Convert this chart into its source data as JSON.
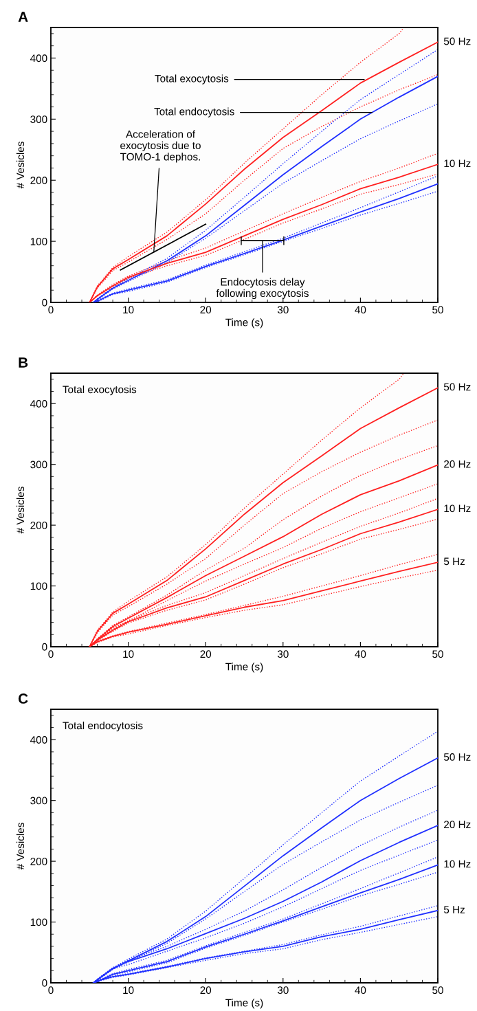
{
  "chart_data": [
    {
      "type": "line",
      "title": "A",
      "xlabel": "Time (s)",
      "ylabel": "# Vesicles",
      "xlim": [
        0,
        50
      ],
      "ylim": [
        0,
        450
      ],
      "xticks": [
        0,
        10,
        20,
        30,
        40,
        50
      ],
      "yticks": [
        0,
        100,
        200,
        300,
        400
      ],
      "grid": false,
      "legend": false,
      "series": [
        {
          "name": "50 Hz",
          "color": "#ff2020",
          "line_style": "solid",
          "x": [
            5,
            6,
            8,
            10,
            15,
            20,
            25,
            30,
            35,
            40,
            45,
            50
          ],
          "values": [
            0,
            25,
            55,
            70,
            109,
            161,
            218,
            270,
            314,
            359,
            393,
            426
          ]
        },
        {
          "color": "#ff2020",
          "line_style": "dotted",
          "x": [
            5,
            6,
            8,
            10,
            15,
            20,
            25,
            30,
            35,
            40,
            45,
            45.6
          ],
          "values": [
            0,
            27,
            57,
            75,
            115,
            168,
            228,
            284,
            340,
            393,
            440,
            450
          ]
        },
        {
          "color": "#ff2020",
          "line_style": "dotted",
          "x": [
            5,
            6,
            8,
            10,
            15,
            20,
            25,
            30,
            35,
            40,
            45,
            50
          ],
          "values": [
            0,
            23,
            52,
            66,
            103,
            145,
            200,
            252,
            288,
            320,
            348,
            373
          ]
        },
        {
          "color": "#2030ff",
          "line_style": "solid",
          "x": [
            5.5,
            6,
            8,
            10,
            15,
            20,
            25,
            30,
            35,
            40,
            45,
            50
          ],
          "values": [
            0,
            5,
            23,
            36,
            68,
            109,
            159,
            209,
            255,
            300,
            336,
            370
          ]
        },
        {
          "color": "#2030ff",
          "line_style": "dotted",
          "x": [
            5.5,
            6,
            8,
            10,
            15,
            20,
            25,
            30,
            35,
            40,
            45,
            50
          ],
          "values": [
            0,
            6,
            24,
            39,
            72,
            118,
            172,
            227,
            280,
            332,
            373,
            414
          ]
        },
        {
          "color": "#2030ff",
          "line_style": "dotted",
          "x": [
            5.5,
            6,
            8,
            10,
            15,
            20,
            25,
            30,
            35,
            40,
            45,
            50
          ],
          "values": [
            0,
            4,
            22,
            34,
            65,
            105,
            150,
            195,
            232,
            268,
            297,
            325
          ]
        },
        {
          "name": "10 Hz",
          "color": "#ff2020",
          "line_style": "solid",
          "x": [
            5,
            6,
            8,
            10,
            15,
            20,
            25,
            30,
            35,
            40,
            45,
            50
          ],
          "values": [
            0,
            11,
            27,
            41,
            64,
            82,
            109,
            136,
            160,
            186,
            205,
            226
          ]
        },
        {
          "color": "#ff2020",
          "line_style": "dotted",
          "x": [
            5,
            6,
            8,
            10,
            15,
            20,
            25,
            30,
            35,
            40,
            45,
            50
          ],
          "values": [
            0,
            12,
            29,
            43,
            68,
            89,
            117,
            145,
            172,
            198,
            220,
            244
          ]
        },
        {
          "color": "#ff2020",
          "line_style": "dotted",
          "x": [
            5,
            6,
            8,
            10,
            15,
            20,
            25,
            30,
            35,
            40,
            45,
            50
          ],
          "values": [
            0,
            10,
            25,
            39,
            60,
            77,
            103,
            130,
            153,
            177,
            193,
            210
          ]
        },
        {
          "color": "#2030ff",
          "line_style": "solid",
          "x": [
            5.5,
            6,
            8,
            10,
            15,
            20,
            25,
            30,
            35,
            40,
            45,
            50
          ],
          "values": [
            0,
            2,
            14,
            20,
            35,
            59,
            80,
            102,
            125,
            148,
            170,
            194
          ]
        },
        {
          "color": "#2030ff",
          "line_style": "dotted",
          "x": [
            5.5,
            6,
            8,
            10,
            15,
            20,
            25,
            30,
            35,
            40,
            45,
            50
          ],
          "values": [
            0,
            3,
            15,
            22,
            37,
            61,
            83,
            105,
            130,
            155,
            181,
            207
          ]
        },
        {
          "color": "#2030ff",
          "line_style": "dotted",
          "x": [
            5.5,
            6,
            8,
            10,
            15,
            20,
            25,
            30,
            35,
            40,
            45,
            50
          ],
          "values": [
            0,
            1,
            13,
            18,
            33,
            57,
            78,
            100,
            121,
            143,
            162,
            182
          ]
        },
        {
          "color": "#000000",
          "line_style": "solid",
          "x": [
            9,
            20
          ],
          "values": [
            53,
            128
          ]
        },
        {
          "color": "#000000",
          "line_style": "solid",
          "errors": [
            7,
            7
          ],
          "x": [
            24.6,
            30.1
          ],
          "values": [
            101,
            101
          ]
        }
      ],
      "annotations": [
        {
          "text": "Total exocytosis",
          "x": 40.5,
          "y": 365
        },
        {
          "text": "Total endocytosis",
          "x": 41.5,
          "y": 311
        },
        {
          "text": "Acceleration of\nexocytosis due to\nTOMO-1 dephos.",
          "x": 13.3,
          "y": 82
        },
        {
          "text": "Endocytosis delay\nfollowing exocytosis",
          "x": 27.35,
          "y": 101
        }
      ]
    },
    {
      "type": "line",
      "title": "B",
      "xlabel": "Time (s)",
      "ylabel": "# Vesicles",
      "xlim": [
        0,
        50
      ],
      "ylim": [
        0,
        450
      ],
      "xticks": [
        0,
        10,
        20,
        30,
        40,
        50
      ],
      "yticks": [
        0,
        100,
        200,
        300,
        400
      ],
      "grid": false,
      "legend": false,
      "series": [
        {
          "name": "50 Hz",
          "color": "#ff2020",
          "line_style": "solid",
          "x": [
            5,
            6,
            8,
            10,
            15,
            20,
            25,
            30,
            35,
            40,
            45,
            50
          ],
          "values": [
            0,
            25,
            55,
            70,
            109,
            161,
            218,
            270,
            314,
            359,
            393,
            426
          ]
        },
        {
          "color": "#ff2020",
          "line_style": "dotted",
          "x": [
            5,
            6,
            8,
            10,
            15,
            20,
            25,
            30,
            35,
            40,
            45,
            45.6
          ],
          "values": [
            0,
            27,
            57,
            75,
            115,
            168,
            228,
            284,
            340,
            393,
            440,
            450
          ]
        },
        {
          "color": "#ff2020",
          "line_style": "dotted",
          "x": [
            5,
            6,
            8,
            10,
            15,
            20,
            25,
            30,
            35,
            40,
            45,
            50
          ],
          "values": [
            0,
            23,
            52,
            66,
            103,
            145,
            200,
            252,
            288,
            320,
            348,
            373
          ]
        },
        {
          "name": "20 Hz",
          "color": "#ff2020",
          "line_style": "solid",
          "x": [
            5,
            6,
            8,
            10,
            15,
            20,
            25,
            30,
            35,
            40,
            45,
            50
          ],
          "values": [
            0,
            12,
            33,
            47,
            81,
            117,
            149,
            181,
            218,
            250,
            273,
            299
          ]
        },
        {
          "color": "#ff2020",
          "line_style": "dotted",
          "x": [
            5,
            6,
            8,
            10,
            15,
            20,
            25,
            30,
            35,
            40,
            45,
            50
          ],
          "values": [
            0,
            13,
            35,
            49,
            85,
            126,
            162,
            209,
            248,
            282,
            308,
            331
          ]
        },
        {
          "color": "#ff2020",
          "line_style": "dotted",
          "x": [
            5,
            6,
            8,
            10,
            15,
            20,
            25,
            30,
            35,
            40,
            45,
            50
          ],
          "values": [
            0,
            11,
            31,
            42,
            76,
            108,
            136,
            163,
            195,
            222,
            245,
            268
          ]
        },
        {
          "name": "10 Hz",
          "color": "#ff2020",
          "line_style": "solid",
          "x": [
            5,
            6,
            8,
            10,
            15,
            20,
            25,
            30,
            35,
            40,
            45,
            50
          ],
          "values": [
            0,
            11,
            27,
            41,
            64,
            82,
            109,
            136,
            160,
            186,
            205,
            226
          ]
        },
        {
          "color": "#ff2020",
          "line_style": "dotted",
          "x": [
            5,
            6,
            8,
            10,
            15,
            20,
            25,
            30,
            35,
            40,
            45,
            50
          ],
          "values": [
            0,
            12,
            29,
            43,
            68,
            89,
            117,
            145,
            172,
            198,
            220,
            244
          ]
        },
        {
          "color": "#ff2020",
          "line_style": "dotted",
          "x": [
            5,
            6,
            8,
            10,
            15,
            20,
            25,
            30,
            35,
            40,
            45,
            50
          ],
          "values": [
            0,
            10,
            25,
            39,
            60,
            77,
            103,
            130,
            153,
            177,
            193,
            210
          ]
        },
        {
          "name": "5 Hz",
          "color": "#ff2020",
          "line_style": "solid",
          "x": [
            5,
            6,
            8,
            10,
            15,
            20,
            25,
            30,
            35,
            40,
            45,
            50
          ],
          "values": [
            0,
            8,
            17,
            24,
            37,
            51,
            65,
            76,
            92,
            108,
            124,
            139
          ]
        },
        {
          "color": "#ff2020",
          "line_style": "dotted",
          "x": [
            5,
            6,
            8,
            10,
            15,
            20,
            25,
            30,
            35,
            40,
            45,
            50
          ],
          "values": [
            0,
            9,
            18,
            25,
            39,
            53,
            68,
            83,
            100,
            117,
            135,
            152
          ]
        },
        {
          "color": "#ff2020",
          "line_style": "dotted",
          "x": [
            5,
            6,
            8,
            10,
            15,
            20,
            25,
            30,
            35,
            40,
            45,
            50
          ],
          "values": [
            0,
            7,
            16,
            21,
            35,
            48,
            60,
            69,
            84,
            99,
            113,
            126
          ]
        }
      ],
      "annotations": [
        "Total exocytosis"
      ]
    },
    {
      "type": "line",
      "title": "C",
      "xlabel": "Time (s)",
      "ylabel": "# Vesicles",
      "xlim": [
        0,
        50
      ],
      "ylim": [
        0,
        450
      ],
      "xticks": [
        0,
        10,
        20,
        30,
        40,
        50
      ],
      "yticks": [
        0,
        100,
        200,
        300,
        400
      ],
      "grid": false,
      "legend": false,
      "series": [
        {
          "name": "50 Hz",
          "color": "#2030ff",
          "line_style": "solid",
          "x": [
            5.5,
            6,
            8,
            10,
            15,
            20,
            25,
            30,
            35,
            40,
            45,
            50
          ],
          "values": [
            0,
            5,
            23,
            36,
            68,
            109,
            159,
            209,
            255,
            300,
            336,
            370
          ]
        },
        {
          "color": "#2030ff",
          "line_style": "dotted",
          "x": [
            5.5,
            6,
            8,
            10,
            15,
            20,
            25,
            30,
            35,
            40,
            45,
            50
          ],
          "values": [
            0,
            6,
            24,
            39,
            72,
            118,
            172,
            227,
            280,
            332,
            373,
            414
          ]
        },
        {
          "color": "#2030ff",
          "line_style": "dotted",
          "x": [
            5.5,
            6,
            8,
            10,
            15,
            20,
            25,
            30,
            35,
            40,
            45,
            50
          ],
          "values": [
            0,
            4,
            22,
            34,
            65,
            105,
            150,
            195,
            232,
            268,
            297,
            325
          ]
        },
        {
          "name": "20 Hz",
          "color": "#2030ff",
          "line_style": "solid",
          "x": [
            5.5,
            6,
            8,
            10,
            15,
            20,
            25,
            30,
            35,
            40,
            45,
            50
          ],
          "values": [
            0,
            5,
            24,
            35,
            56,
            81,
            106,
            134,
            166,
            201,
            231,
            259
          ]
        },
        {
          "color": "#2030ff",
          "line_style": "dotted",
          "x": [
            5.5,
            6,
            8,
            10,
            15,
            20,
            25,
            30,
            35,
            40,
            45,
            50
          ],
          "values": [
            0,
            6,
            25,
            37,
            60,
            88,
            118,
            153,
            190,
            226,
            256,
            284
          ]
        },
        {
          "color": "#2030ff",
          "line_style": "dotted",
          "x": [
            5.5,
            6,
            8,
            10,
            15,
            20,
            25,
            30,
            35,
            40,
            45,
            50
          ],
          "values": [
            0,
            4,
            23,
            30,
            52,
            74,
            98,
            125,
            155,
            185,
            210,
            235
          ]
        },
        {
          "name": "10 Hz",
          "color": "#2030ff",
          "line_style": "solid",
          "x": [
            5.5,
            6,
            8,
            10,
            15,
            20,
            25,
            30,
            35,
            40,
            45,
            50
          ],
          "values": [
            0,
            2,
            14,
            20,
            35,
            59,
            80,
            102,
            125,
            148,
            170,
            194
          ]
        },
        {
          "color": "#2030ff",
          "line_style": "dotted",
          "x": [
            5.5,
            6,
            8,
            10,
            15,
            20,
            25,
            30,
            35,
            40,
            45,
            50
          ],
          "values": [
            0,
            3,
            15,
            22,
            37,
            61,
            83,
            105,
            130,
            155,
            181,
            207
          ]
        },
        {
          "color": "#2030ff",
          "line_style": "dotted",
          "x": [
            5.5,
            6,
            8,
            10,
            15,
            20,
            25,
            30,
            35,
            40,
            45,
            50
          ],
          "values": [
            0,
            1,
            13,
            18,
            33,
            57,
            78,
            100,
            121,
            143,
            162,
            182
          ]
        },
        {
          "name": "5 Hz",
          "color": "#2030ff",
          "line_style": "solid",
          "x": [
            5.5,
            6,
            8,
            10,
            15,
            20,
            25,
            30,
            35,
            40,
            45,
            50
          ],
          "values": [
            0,
            3,
            10,
            14,
            26,
            40,
            51,
            60,
            76,
            88,
            104,
            119
          ]
        },
        {
          "color": "#2030ff",
          "line_style": "dotted",
          "x": [
            5.5,
            6,
            8,
            10,
            15,
            20,
            25,
            30,
            35,
            40,
            45,
            50
          ],
          "values": [
            0,
            4,
            11,
            15,
            27,
            41,
            52,
            63,
            79,
            93,
            110,
            127
          ]
        },
        {
          "color": "#2030ff",
          "line_style": "dotted",
          "x": [
            5.5,
            6,
            8,
            10,
            15,
            20,
            25,
            30,
            35,
            40,
            45,
            50
          ],
          "values": [
            0,
            2,
            9,
            13,
            25,
            37,
            48,
            56,
            71,
            83,
            96,
            109
          ]
        }
      ],
      "annotations": [
        "Total endocytosis"
      ]
    }
  ]
}
